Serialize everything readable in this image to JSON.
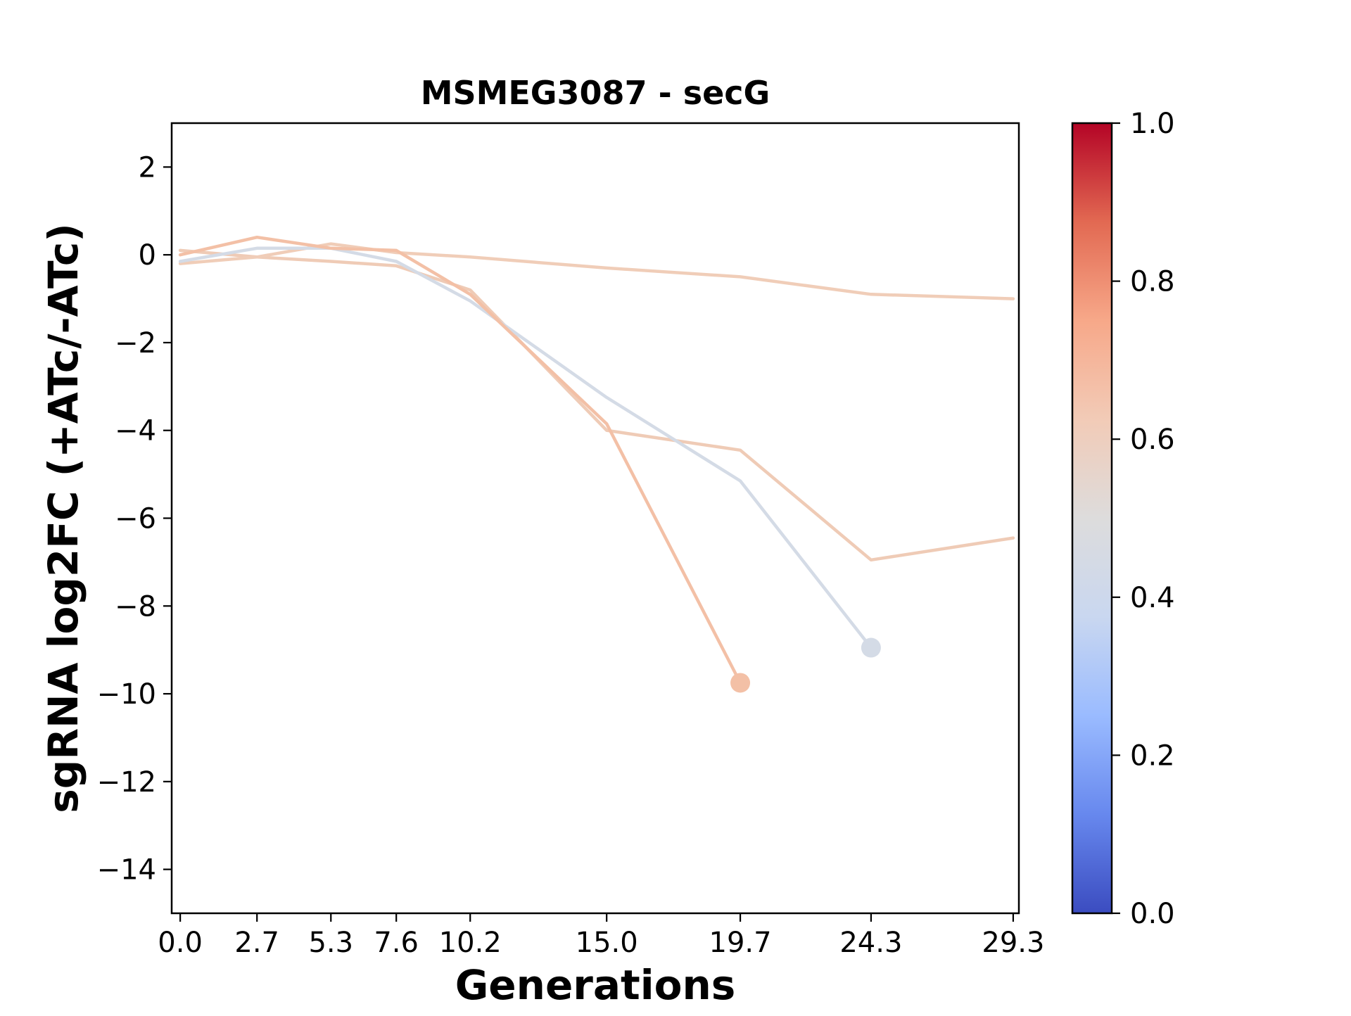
{
  "chart_data": {
    "type": "line",
    "title": "MSMEG3087 - secG",
    "xlabel": "Generations",
    "ylabel": "sgRNA log2FC (+ATc/-ATc)",
    "xlim": [
      -0.3,
      29.5
    ],
    "ylim": [
      -15,
      3
    ],
    "x_ticks": [
      0.0,
      2.7,
      5.3,
      7.6,
      10.2,
      15.0,
      19.7,
      24.3,
      29.3
    ],
    "x_tick_labels": [
      "0.0",
      "2.7",
      "5.3",
      "7.6",
      "10.2",
      "15.0",
      "19.7",
      "24.3",
      "29.3"
    ],
    "y_ticks": [
      2,
      0,
      -2,
      -4,
      -6,
      -8,
      -10,
      -12,
      -14
    ],
    "y_tick_labels": [
      "2",
      "0",
      "−2",
      "−4",
      "−6",
      "−8",
      "−10",
      "−12",
      "−14"
    ],
    "grid": false,
    "series": [
      {
        "color": "#efcbb6",
        "x": [
          0.0,
          2.7,
          5.3,
          7.6,
          10.2,
          15.0,
          19.7,
          24.3,
          29.3
        ],
        "y": [
          0.1,
          -0.05,
          -0.15,
          -0.25,
          -0.8,
          -4.0,
          -4.45,
          -6.95,
          -6.45
        ],
        "end_marker": false
      },
      {
        "color": "#f0cdb8",
        "x": [
          0.0,
          2.7,
          5.3,
          7.6,
          10.2,
          15.0,
          19.7,
          24.3,
          29.3
        ],
        "y": [
          -0.2,
          -0.05,
          0.25,
          0.05,
          -0.05,
          -0.3,
          -0.5,
          -0.9,
          -1.0
        ],
        "end_marker": false
      },
      {
        "color": "#d4dbe6",
        "x": [
          0.0,
          2.7,
          5.3,
          7.6,
          10.2,
          15.0,
          19.7,
          24.3
        ],
        "y": [
          -0.15,
          0.15,
          0.15,
          -0.15,
          -1.05,
          -3.25,
          -5.15,
          -8.95
        ],
        "end_marker": true
      },
      {
        "color": "#f3c0a6",
        "x": [
          0.0,
          2.7,
          5.3,
          7.6,
          10.2,
          15.0,
          19.7
        ],
        "y": [
          0.0,
          0.4,
          0.15,
          0.1,
          -0.9,
          -3.85,
          -9.75
        ],
        "end_marker": true
      }
    ],
    "colorbar": {
      "range": [
        0.0,
        1.0
      ],
      "ticks": [
        0.0,
        0.2,
        0.4,
        0.6,
        0.8,
        1.0
      ],
      "tick_labels": [
        "0.0",
        "0.2",
        "0.4",
        "0.6",
        "0.8",
        "1.0"
      ],
      "colormap": "coolwarm",
      "stops": [
        "#3b4cc0",
        "#6788ee",
        "#9abbff",
        "#c9d7f0",
        "#dddcdc",
        "#f2cbb7",
        "#f7a889",
        "#e26952",
        "#b40426"
      ]
    }
  }
}
